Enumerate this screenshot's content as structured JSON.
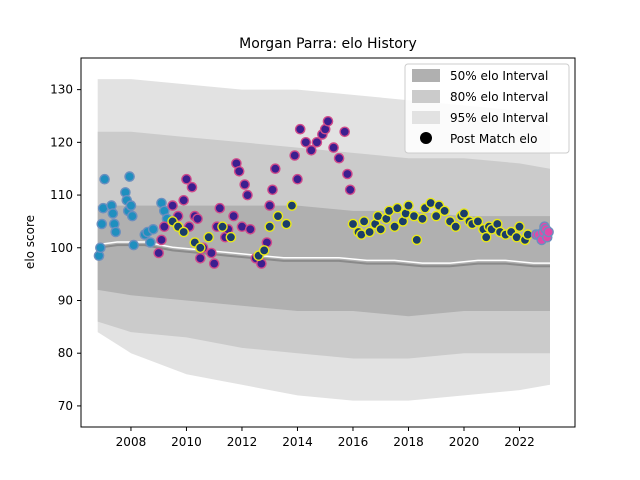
{
  "chart_data": {
    "type": "scatter",
    "title": "Morgan Parra: elo History",
    "xlabel": "",
    "ylabel": "elo score",
    "xlim": [
      2006.2,
      2024.0
    ],
    "ylim": [
      66,
      136
    ],
    "x_ticks": [
      2008,
      2010,
      2012,
      2014,
      2016,
      2018,
      2020,
      2022
    ],
    "y_ticks": [
      70,
      80,
      90,
      100,
      110,
      120,
      130
    ],
    "grid": false,
    "legend_position": "top-right",
    "legend": [
      {
        "label": "50% elo Interval",
        "color": "#b0b0b0"
      },
      {
        "label": "80% elo Interval",
        "color": "#cbcbcb"
      },
      {
        "label": "95% elo Interval",
        "color": "#e2e2e2"
      },
      {
        "label": "Post Match elo",
        "color": "#000000"
      }
    ],
    "bands": [
      {
        "x": [
          2006.8,
          2008,
          2010,
          2012,
          2014,
          2016,
          2018,
          2020,
          2022,
          2023.1
        ],
        "lower95": [
          84,
          80,
          76,
          74,
          72,
          71,
          71,
          72,
          73,
          74
        ],
        "upper95": [
          132,
          132,
          131,
          130,
          130,
          129,
          128,
          127,
          126,
          123
        ]
      },
      {
        "x": [
          2006.8,
          2008,
          2010,
          2012,
          2014,
          2016,
          2018,
          2020,
          2022,
          2023.1
        ],
        "lower80": [
          86,
          84,
          83,
          81,
          80,
          79,
          79,
          80,
          80,
          80
        ],
        "upper80": [
          122,
          122,
          121,
          120,
          119,
          118,
          117,
          117,
          116,
          115
        ]
      },
      {
        "x": [
          2006.8,
          2008,
          2010,
          2012,
          2014,
          2016,
          2018,
          2020,
          2022,
          2023.1
        ],
        "lower50": [
          92,
          91,
          90,
          89,
          88,
          88,
          87,
          88,
          88,
          88
        ],
        "upper50": [
          108,
          108,
          108,
          108,
          108,
          107,
          107,
          106,
          106,
          106
        ]
      }
    ],
    "median_line": {
      "x": [
        2006.8,
        2007.5,
        2008.5,
        2009.5,
        2010.5,
        2011.5,
        2012.5,
        2013.5,
        2014.5,
        2015.5,
        2016.5,
        2017.5,
        2018.5,
        2019.5,
        2020.5,
        2021.5,
        2022.5,
        2023.1
      ],
      "y": [
        100,
        100.5,
        100.5,
        99.5,
        99,
        98.5,
        98,
        97.5,
        97.5,
        97.5,
        97,
        97,
        96.5,
        96.5,
        97,
        97,
        96.5,
        96.5
      ]
    },
    "series": [
      {
        "color": "#1f8fbf",
        "x": [
          2006.85,
          2006.9,
          2006.95,
          2007.0,
          2007.05,
          2007.3,
          2007.35,
          2007.4,
          2007.45,
          2007.8,
          2007.85,
          2007.9,
          2007.95,
          2008.0,
          2008.05,
          2008.1,
          2008.5,
          2008.6,
          2008.7,
          2008.8,
          2009.1,
          2009.2,
          2009.3
        ],
        "y": [
          98.5,
          100,
          104.5,
          107.5,
          113,
          108,
          106.5,
          104.5,
          103,
          110.5,
          109,
          107,
          113.5,
          108,
          106,
          100.5,
          102.5,
          103,
          101,
          103.5,
          108.5,
          107,
          105.5
        ]
      },
      {
        "color": "#3b1f8f",
        "x": [
          2009.0,
          2009.1,
          2009.2,
          2009.5,
          2009.7,
          2009.9,
          2010.0,
          2010.1,
          2010.2,
          2010.3,
          2010.4,
          2010.5,
          2010.6,
          2010.9,
          2011.0,
          2011.1,
          2011.2,
          2011.4,
          2011.5,
          2011.7,
          2011.8,
          2011.9,
          2012.0,
          2012.1,
          2012.2,
          2012.3,
          2012.5,
          2012.7,
          2012.9,
          2013.0,
          2013.1,
          2013.2,
          2013.9,
          2014.0,
          2014.1,
          2014.3,
          2014.5,
          2014.7,
          2014.9,
          2015.0,
          2015.1,
          2015.3,
          2015.5,
          2015.7,
          2015.8,
          2015.9
        ],
        "y": [
          99,
          101.5,
          104,
          108,
          106,
          109,
          113,
          104,
          111.5,
          106,
          105.5,
          98,
          100,
          99,
          97,
          104,
          107.5,
          102,
          103.5,
          106,
          116,
          114.5,
          104,
          112,
          110,
          103.5,
          98,
          97,
          101,
          108,
          111,
          115,
          117.5,
          113,
          122.5,
          120,
          118.5,
          120,
          121.5,
          122.5,
          124,
          119,
          117,
          122,
          114,
          111
        ]
      },
      {
        "color": "#1a3d6a",
        "x": [
          2009.5,
          2009.7,
          2009.9,
          2010.3,
          2010.5,
          2010.8,
          2011.3,
          2011.6,
          2012.6,
          2012.8,
          2013.0,
          2013.3,
          2013.6,
          2013.8,
          2016.0,
          2016.2,
          2016.3,
          2016.4,
          2016.6,
          2016.8,
          2016.9,
          2017.0,
          2017.2,
          2017.3,
          2017.5,
          2017.6,
          2017.8,
          2017.9,
          2018.0,
          2018.2,
          2018.3,
          2018.5,
          2018.6,
          2018.8,
          2019.0,
          2019.1,
          2019.3,
          2019.5,
          2019.7,
          2019.9,
          2020.0,
          2020.2,
          2020.3,
          2020.5,
          2020.7,
          2020.8,
          2020.9,
          2021.0,
          2021.2,
          2021.3,
          2021.5,
          2021.7,
          2021.9,
          2022.0,
          2022.2,
          2022.3
        ],
        "y": [
          105,
          104,
          103,
          101,
          100,
          102,
          104,
          102,
          98.5,
          99.5,
          104,
          106,
          104.5,
          108,
          104.5,
          103,
          102.5,
          105,
          103,
          104.5,
          106,
          103.5,
          105.5,
          107,
          104,
          107.5,
          105,
          106.5,
          108,
          106,
          101.5,
          105.5,
          107.5,
          108.5,
          106,
          108,
          107,
          105,
          104,
          106,
          106.5,
          105,
          104.5,
          105,
          103.5,
          102,
          104,
          103.5,
          104.5,
          103,
          102.5,
          103,
          102,
          104,
          101.5,
          102.5
        ]
      },
      {
        "color": "#e04aa8",
        "x": [
          2022.6,
          2022.7,
          2022.8,
          2022.85,
          2022.9,
          2022.95,
          2023.0,
          2023.05
        ],
        "y": [
          102.5,
          102.5,
          101.5,
          103,
          104,
          103.5,
          102,
          103
        ]
      }
    ]
  }
}
